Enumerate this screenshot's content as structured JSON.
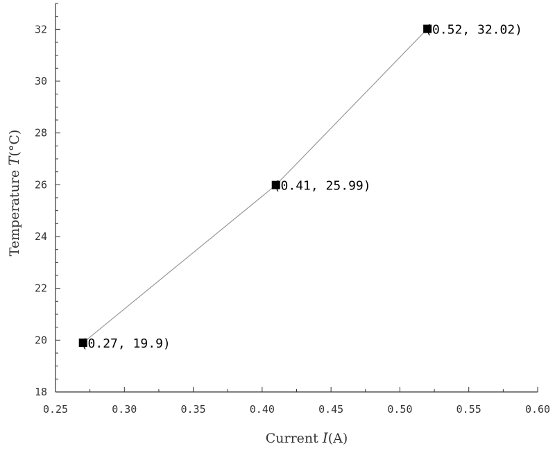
{
  "chart_data": {
    "type": "line",
    "title": "",
    "xlabel": {
      "prefix": "Current ",
      "symbol": "I",
      "unit": "(A)"
    },
    "ylabel": {
      "prefix": "Temperature ",
      "symbol": "T",
      "unit": "(°C)"
    },
    "xlim": [
      0.25,
      0.6
    ],
    "ylim": [
      18,
      33
    ],
    "x_ticks": [
      0.25,
      0.3,
      0.35,
      0.4,
      0.45,
      0.5,
      0.55,
      0.6
    ],
    "x_tick_labels": [
      "0.25",
      "0.30",
      "0.35",
      "0.40",
      "0.45",
      "0.50",
      "0.55",
      "0.60"
    ],
    "y_ticks": [
      18,
      20,
      22,
      24,
      26,
      28,
      30,
      32
    ],
    "y_tick_labels": [
      "18",
      "20",
      "22",
      "24",
      "26",
      "28",
      "30",
      "32"
    ],
    "grid": false,
    "series": [
      {
        "x": [
          0.27,
          0.41,
          0.52
        ],
        "y": [
          19.9,
          25.99,
          32.02
        ],
        "point_labels": [
          "(0.27, 19.9)",
          "(0.41, 25.99)",
          "(0.52, 32.02)"
        ],
        "marker": "square",
        "color": "#000000",
        "line_color": "#999999"
      }
    ]
  }
}
